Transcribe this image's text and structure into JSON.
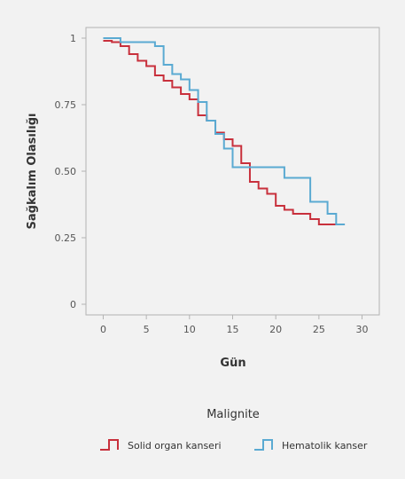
{
  "chart_data": {
    "type": "line",
    "subtype": "step",
    "xlabel": "Gün",
    "ylabel": "Sağkalım Olasılığı",
    "xlim": [
      -2,
      32
    ],
    "ylim": [
      -0.04,
      1.04
    ],
    "x_ticks": [
      {
        "value": 0,
        "label": "0"
      },
      {
        "value": 5,
        "label": "5"
      },
      {
        "value": 10,
        "label": "10"
      },
      {
        "value": 15,
        "label": "15"
      },
      {
        "value": 20,
        "label": "20"
      },
      {
        "value": 25,
        "label": "25"
      },
      {
        "value": 30,
        "label": "30"
      }
    ],
    "y_ticks": [
      {
        "value": 0,
        "label": "0"
      },
      {
        "value": 0.25,
        "label": "0.25"
      },
      {
        "value": 0.5,
        "label": "0.50"
      },
      {
        "value": 0.75,
        "label": "0.75"
      },
      {
        "value": 1,
        "label": "1"
      }
    ],
    "grid": false,
    "legend": {
      "title": "Malignite",
      "position": "bottom"
    },
    "series": [
      {
        "name": "Solid organ kanseri",
        "color": "#c8303c",
        "x": [
          0,
          1,
          2,
          3,
          4,
          5,
          6,
          7,
          8,
          9,
          10,
          11,
          12,
          13,
          14,
          15,
          16,
          17,
          18,
          19,
          20,
          21,
          22,
          24,
          25,
          28
        ],
        "y": [
          0.99,
          0.985,
          0.97,
          0.94,
          0.915,
          0.895,
          0.86,
          0.84,
          0.815,
          0.79,
          0.77,
          0.71,
          0.69,
          0.645,
          0.62,
          0.595,
          0.53,
          0.46,
          0.435,
          0.415,
          0.37,
          0.355,
          0.34,
          0.32,
          0.3,
          0.3
        ]
      },
      {
        "name": "Hematolik kanser",
        "color": "#5aaad2",
        "x": [
          0,
          2,
          6,
          7,
          8,
          9,
          10,
          11,
          12,
          13,
          14,
          15,
          21,
          24,
          26,
          27,
          28
        ],
        "y": [
          1.0,
          0.985,
          0.97,
          0.9,
          0.865,
          0.845,
          0.805,
          0.76,
          0.69,
          0.64,
          0.585,
          0.515,
          0.475,
          0.385,
          0.34,
          0.3,
          0.3
        ]
      }
    ]
  }
}
